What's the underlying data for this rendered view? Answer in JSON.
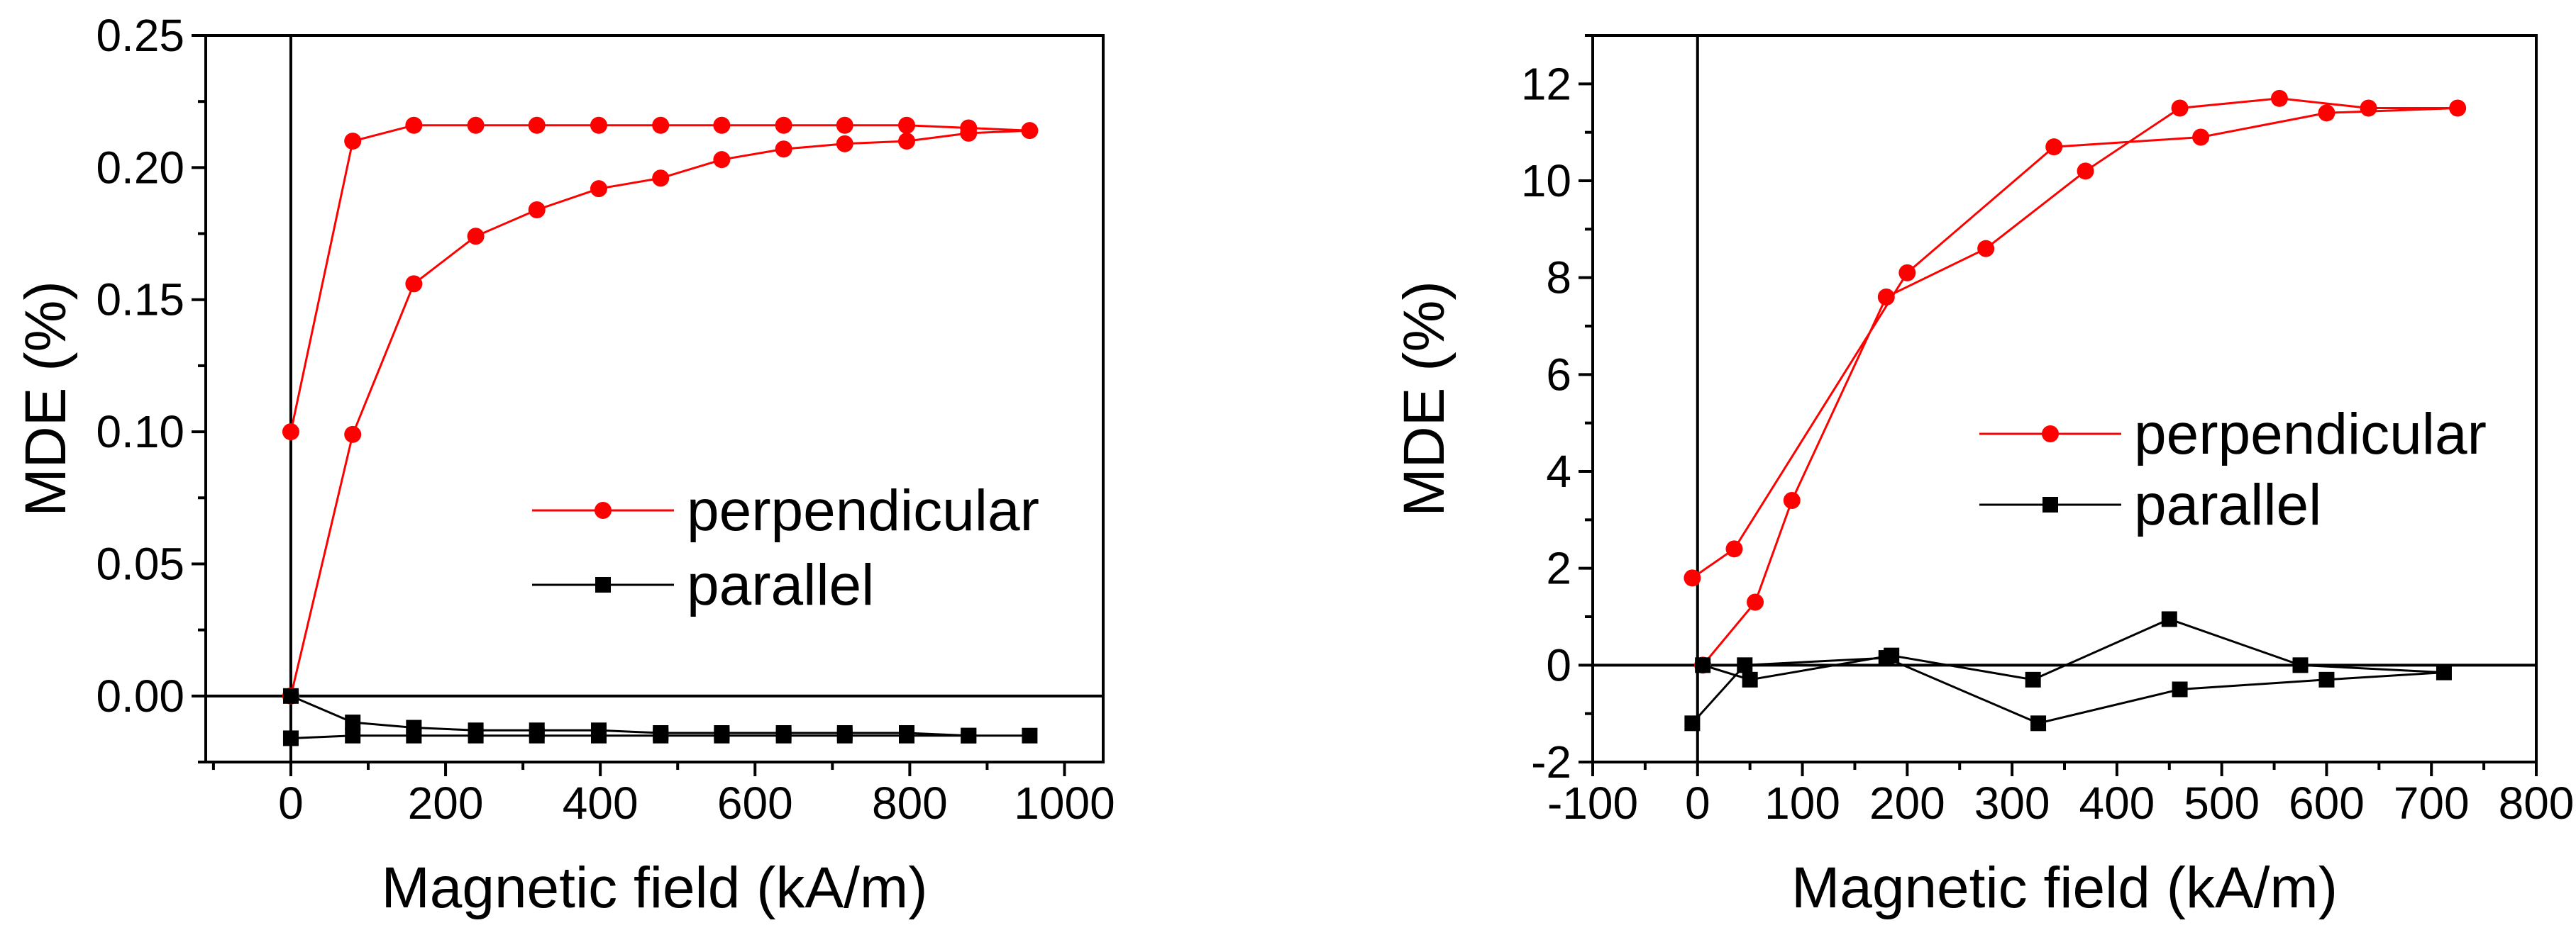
{
  "colors": {
    "perpendicular": "#ff0000",
    "parallel": "#000000"
  },
  "chart_data": [
    {
      "type": "line",
      "xlabel": "Magnetic field (kA/m)",
      "ylabel": "MDE (%)",
      "xlim": [
        -110,
        1050
      ],
      "ylim": [
        -0.025,
        0.25
      ],
      "xticks": [
        0,
        200,
        400,
        600,
        800,
        1000
      ],
      "xtick_labels": [
        "0",
        "200",
        "400",
        "600",
        "800",
        "1000"
      ],
      "yticks": [
        0.0,
        0.05,
        0.1,
        0.15,
        0.2,
        0.25
      ],
      "ytick_labels": [
        "0.00",
        "0.05",
        "0.10",
        "0.15",
        "0.20",
        "0.25"
      ],
      "zero_lines": {
        "x": 0,
        "y": 0
      },
      "legend_position": "middle-right",
      "series": [
        {
          "name": "perpendicular",
          "marker": "circle",
          "color": "#ff0000",
          "x": [
            0,
            80,
            159,
            239,
            318,
            398,
            478,
            557,
            637,
            716,
            796,
            876,
            955,
            876,
            796,
            716,
            637,
            557,
            478,
            398,
            318,
            239,
            159,
            80,
            0
          ],
          "y": [
            0.0,
            0.099,
            0.156,
            0.174,
            0.184,
            0.192,
            0.196,
            0.203,
            0.207,
            0.209,
            0.21,
            0.213,
            0.214,
            0.215,
            0.216,
            0.216,
            0.216,
            0.216,
            0.216,
            0.216,
            0.216,
            0.216,
            0.216,
            0.21,
            0.1
          ]
        },
        {
          "name": "parallel",
          "marker": "square",
          "color": "#000000",
          "x": [
            0,
            80,
            159,
            239,
            318,
            398,
            478,
            557,
            637,
            716,
            796,
            876,
            955,
            876,
            796,
            716,
            637,
            557,
            478,
            398,
            318,
            239,
            159,
            80,
            0
          ],
          "y": [
            0.0,
            -0.01,
            -0.012,
            -0.013,
            -0.013,
            -0.013,
            -0.014,
            -0.014,
            -0.014,
            -0.014,
            -0.014,
            -0.015,
            -0.015,
            -0.015,
            -0.015,
            -0.015,
            -0.015,
            -0.015,
            -0.015,
            -0.015,
            -0.015,
            -0.015,
            -0.015,
            -0.015,
            -0.016
          ]
        }
      ]
    },
    {
      "type": "line",
      "xlabel": "Magnetic field (kA/m)",
      "ylabel": "MDE (%)",
      "xlim": [
        -100,
        800
      ],
      "ylim": [
        -2,
        13
      ],
      "xticks": [
        -100,
        0,
        100,
        200,
        300,
        400,
        500,
        600,
        700,
        800
      ],
      "xtick_labels": [
        "-100",
        "0",
        "100",
        "200",
        "300",
        "400",
        "500",
        "600",
        "700",
        "800"
      ],
      "yticks": [
        -2,
        0,
        2,
        4,
        6,
        8,
        10,
        12
      ],
      "ytick_labels": [
        "-2",
        "0",
        "2",
        "4",
        "6",
        "8",
        "10",
        "12"
      ],
      "zero_lines": {
        "x": 0,
        "y": 0
      },
      "legend_position": "middle-right",
      "series": [
        {
          "name": "perpendicular",
          "marker": "circle",
          "color": "#ff0000",
          "x": [
            5,
            55,
            90,
            180,
            275,
            370,
            460,
            555,
            640,
            725,
            600,
            480,
            340,
            200,
            35,
            -5
          ],
          "y": [
            0.0,
            1.3,
            3.4,
            7.6,
            8.6,
            10.2,
            11.5,
            11.7,
            11.5,
            11.5,
            11.4,
            10.9,
            10.7,
            8.1,
            2.4,
            1.8
          ]
        },
        {
          "name": "parallel",
          "marker": "square",
          "color": "#000000",
          "x": [
            5,
            50,
            185,
            320,
            450,
            575,
            712,
            600,
            460,
            325,
            180,
            45,
            -5
          ],
          "y": [
            0.0,
            -0.3,
            0.2,
            -0.3,
            0.95,
            0.0,
            -0.15,
            -0.3,
            -0.5,
            -1.2,
            0.15,
            0.0,
            -1.2
          ]
        }
      ]
    }
  ]
}
